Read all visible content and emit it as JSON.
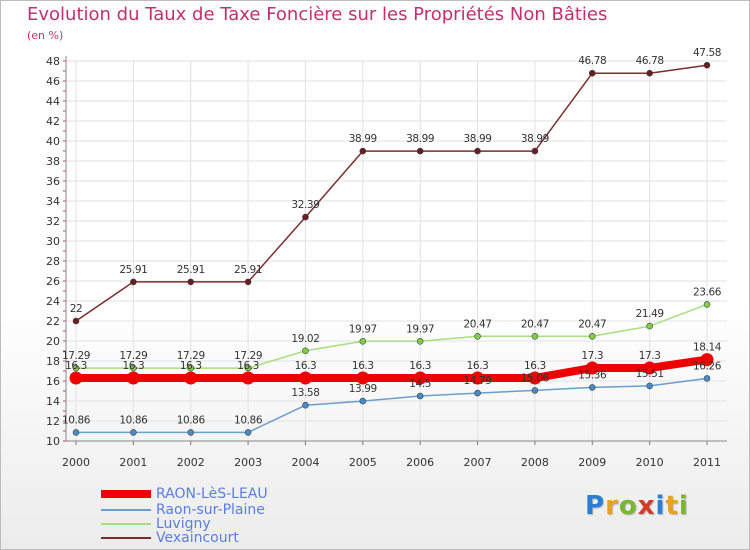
{
  "header": {
    "title": "Evolution du Taux de Taxe Foncière sur les Propriétés Non Bâties",
    "unit": "(en %)"
  },
  "logo": {
    "letters": [
      "P",
      "r",
      "o",
      "x",
      "i",
      "t",
      "i"
    ],
    "colors": [
      "#2a7fd4",
      "#e8a21c",
      "#7ab72e",
      "#d23a2a",
      "#2a7fd4",
      "#e8a21c",
      "#7ab72e"
    ]
  },
  "legend": [
    {
      "label": "RAON-LèS-LEAU",
      "color": "#ee0000"
    },
    {
      "label": "Raon-sur-Plaine",
      "color": "#6b9ecb"
    },
    {
      "label": "Luvigny",
      "color": "#a6df7c"
    },
    {
      "label": "Vexaincourt",
      "color": "#7a2e2e"
    }
  ],
  "chart_data": {
    "type": "line",
    "title": "Evolution du Taux de Taxe Foncière sur les Propriétés Non Bâties",
    "ylabel": "(en %)",
    "xlabel": "",
    "ylim": [
      10,
      48
    ],
    "yticks": [
      10,
      12,
      14,
      16,
      18,
      20,
      22,
      24,
      26,
      28,
      30,
      32,
      34,
      36,
      38,
      40,
      42,
      44,
      46,
      48
    ],
    "categories": [
      "2000",
      "2001",
      "2002",
      "2003",
      "2004",
      "2005",
      "2006",
      "2007",
      "2008",
      "2009",
      "2010",
      "2011"
    ],
    "grid": true,
    "legend_position": "bottom-left",
    "series": [
      {
        "name": "Vexaincourt",
        "color": "#7a2e2e",
        "marker": "#6b1c22",
        "values": [
          22,
          25.91,
          25.91,
          25.91,
          32.39,
          38.99,
          38.99,
          38.99,
          38.99,
          46.78,
          46.78,
          47.58
        ],
        "labels": [
          "22",
          "25.91",
          "25.91",
          "25.91",
          "32.39",
          "38.99",
          "38.99",
          "38.99",
          "38.99",
          "46.78",
          "46.78",
          "47.58"
        ]
      },
      {
        "name": "Luvigny",
        "color": "#a6df7c",
        "marker": "#7fcf45",
        "values": [
          17.29,
          17.29,
          17.29,
          17.29,
          19.02,
          19.97,
          19.97,
          20.47,
          20.47,
          20.47,
          21.49,
          23.66
        ],
        "labels": [
          "17.29",
          "17.29",
          "17.29",
          "17.29",
          "19.02",
          "19.97",
          "19.97",
          "20.47",
          "20.47",
          "20.47",
          "21.49",
          "23.66"
        ]
      },
      {
        "name": "Raon-sur-Plaine",
        "color": "#6b9ecb",
        "marker": "#4a8ac9",
        "values": [
          10.86,
          10.86,
          10.86,
          10.86,
          13.58,
          13.99,
          14.5,
          14.79,
          15.06,
          15.36,
          15.51,
          16.26
        ],
        "labels": [
          "10.86",
          "10.86",
          "10.86",
          "10.86",
          "13.58",
          "13.99",
          "14.5",
          "14.79",
          "15.06",
          "15.36",
          "15.51",
          "16.26"
        ]
      },
      {
        "name": "RAON-LèS-LEAU",
        "color": "#ee0000",
        "marker": "#ee0000",
        "values": [
          16.3,
          16.3,
          16.3,
          16.3,
          16.3,
          16.3,
          16.3,
          16.3,
          16.3,
          17.3,
          17.3,
          18.14
        ],
        "labels": [
          "16.3",
          "16.3",
          "16.3",
          "16.3",
          "16.3",
          "16.3",
          "16.3",
          "16.3",
          "16.3",
          "17.3",
          "17.3",
          "18.14"
        ]
      }
    ]
  }
}
